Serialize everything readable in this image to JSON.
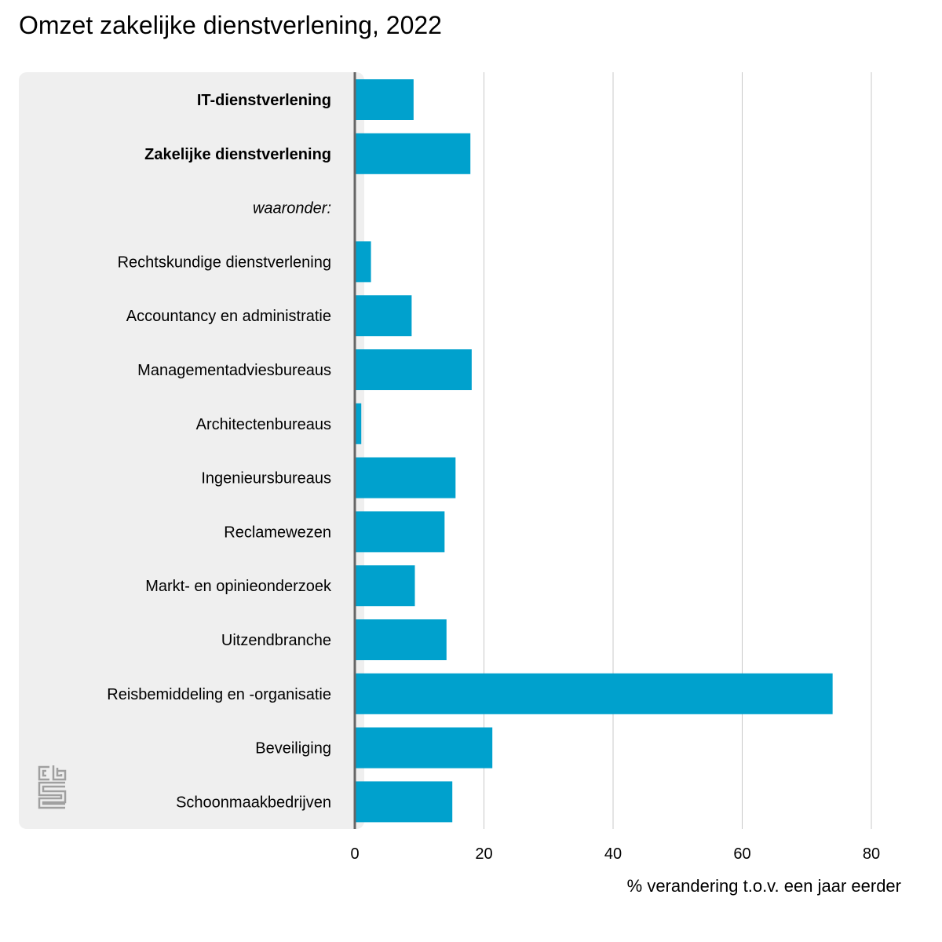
{
  "chart_data": {
    "type": "bar",
    "orientation": "horizontal",
    "title": "Omzet zakelijke dienstverlening, 2022",
    "xlabel": "% verandering t.o.v. een jaar eerder",
    "ylabel": "",
    "xlim": [
      0,
      80
    ],
    "xticks": [
      "0",
      "20",
      "40",
      "60",
      "80"
    ],
    "grid": true,
    "categories": [
      {
        "label": "IT-dienstverlening",
        "style": "bold",
        "value": 9.1
      },
      {
        "label": "Zakelijke dienstverlening",
        "style": "bold",
        "value": 17.9
      },
      {
        "label": "waaronder:",
        "style": "italic",
        "value": null
      },
      {
        "label": "Rechtskundige dienstverlening",
        "style": "normal",
        "value": 2.5
      },
      {
        "label": "Accountancy en administratie",
        "style": "normal",
        "value": 8.8
      },
      {
        "label": "Managementadviesbureaus",
        "style": "normal",
        "value": 18.1
      },
      {
        "label": "Architectenbureaus",
        "style": "normal",
        "value": 1.0
      },
      {
        "label": "Ingenieursbureaus",
        "style": "normal",
        "value": 15.6
      },
      {
        "label": "Reclamewezen",
        "style": "normal",
        "value": 13.9
      },
      {
        "label": "Markt- en opinieonderzoek",
        "style": "normal",
        "value": 9.3
      },
      {
        "label": "Uitzendbranche",
        "style": "normal",
        "value": 14.2
      },
      {
        "label": "Reisbemiddeling en -organisatie",
        "style": "normal",
        "value": 74.0
      },
      {
        "label": "Beveiliging",
        "style": "normal",
        "value": 21.3
      },
      {
        "label": "Schoonmaakbedrijven",
        "style": "normal",
        "value": 15.1
      }
    ],
    "colors": {
      "bar": "#00A1CD",
      "panel": "#EFEFEF",
      "gridline": "#C8C8C8",
      "axis": "#666666",
      "logo": "#A0A0A0"
    }
  },
  "logo": {
    "name": "cbs-logo"
  }
}
